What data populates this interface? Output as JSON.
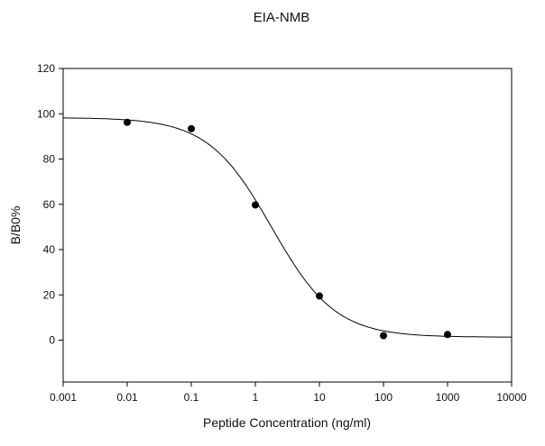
{
  "chart_data": {
    "type": "scatter",
    "title": "EIA-NMB",
    "xlabel": "Peptide Concentration (ng/ml)",
    "ylabel": "B/B0%",
    "xscale": "log",
    "xlim": [
      0.001,
      10000
    ],
    "ylim": [
      -18.5,
      120
    ],
    "x_ticks": [
      "0.001",
      "0.01",
      "0.1",
      "1",
      "10",
      "100",
      "1000",
      "10000"
    ],
    "y_ticks": [
      "0",
      "20",
      "40",
      "60",
      "80",
      "100",
      "120"
    ],
    "grid": false,
    "legend": "none",
    "series": [
      {
        "points": [
          {
            "x": 0.01,
            "y": 96.2
          },
          {
            "x": 0.1,
            "y": 93.4
          },
          {
            "x": 1,
            "y": 59.7
          },
          {
            "x": 10,
            "y": 19.5
          },
          {
            "x": 100,
            "y": 2.0
          },
          {
            "x": 1000,
            "y": 2.5
          }
        ],
        "color": "#000000"
      }
    ],
    "fit_curve": {
      "model": "4-parameter logistic",
      "top": 98.3,
      "bottom": 1.3,
      "ec50": 1.8,
      "hill": 0.874,
      "color": "#000000"
    }
  }
}
